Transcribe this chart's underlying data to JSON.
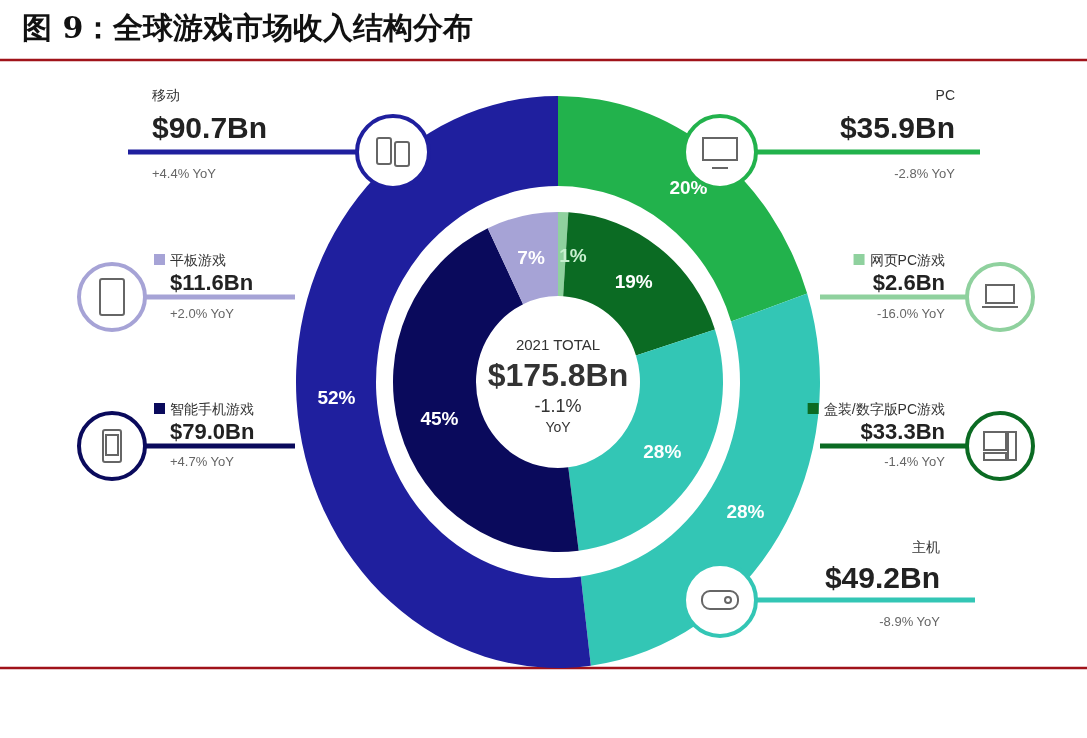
{
  "chart_data": [
    {
      "type": "donut",
      "title": "图 9：全球游戏市场收入结构分布",
      "categories": [
        "PC",
        "主机",
        "移动"
      ],
      "values": [
        20,
        28,
        52
      ],
      "colors": [
        "#22b24c",
        "#33c6b5",
        "#1f1f9e"
      ],
      "data_labels": true,
      "value_labels": [
        "20%",
        "28%",
        "52%"
      ],
      "annotations": [
        "$35.9Bn",
        "-2.8% YoY",
        "$49.2Bn",
        "-8.9% YoY",
        "$90.7Bn",
        "+4.4% YoY"
      ]
    },
    {
      "type": "donut",
      "categories": [
        "网页PC游戏",
        "盒装/数字版PC游戏",
        null,
        "智能手机游戏",
        "平板游戏"
      ],
      "values": [
        1,
        19,
        28,
        45,
        7
      ],
      "colors": [
        "#8fd19e",
        "#0b6b23",
        "#33c6b5",
        "#0a0a5c",
        "#a6a3d6"
      ],
      "data_labels": true,
      "legend": "right",
      "value_labels": [
        "1%",
        "19%",
        "28%",
        "45%",
        "7%"
      ],
      "annotations": [
        "$2.6Bn",
        "-16.0% YoY",
        "$33.3Bn",
        "-1.4% YoY",
        "$79.0Bn",
        "+4.7% YoY",
        "$11.6Bn",
        "+2.0% YoY",
        "2021 TOTAL",
        "$175.8Bn",
        "-1.1%",
        "YoY"
      ]
    }
  ]
}
